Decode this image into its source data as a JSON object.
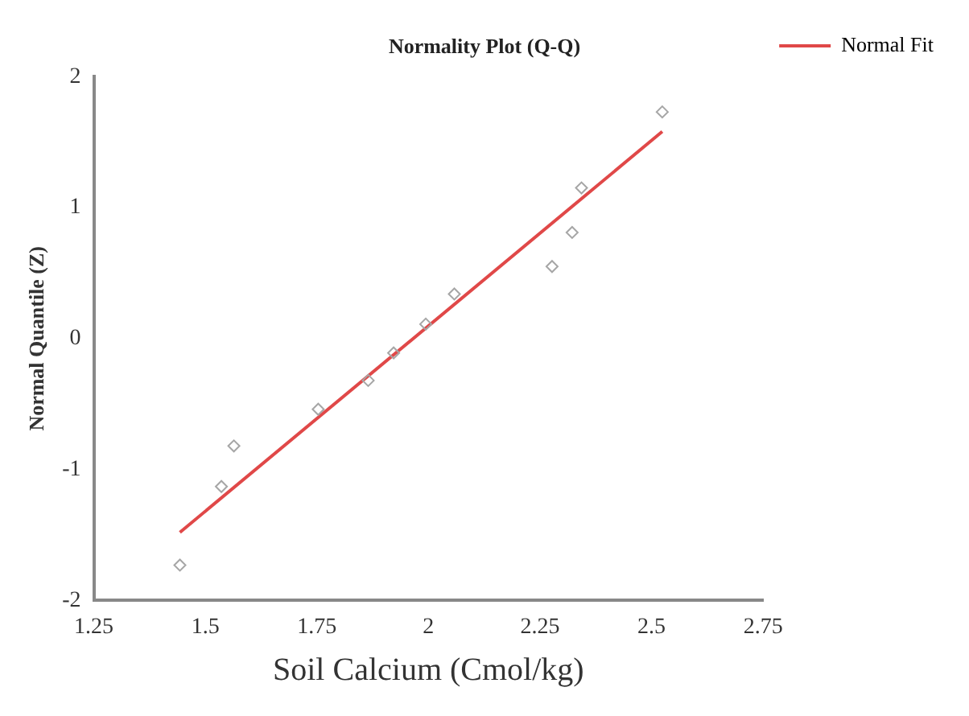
{
  "chart_data": {
    "type": "scatter",
    "title": "Normality Plot (Q-Q)",
    "xlabel": "Soil Calcium (Cmol/kg)",
    "ylabel": "Normal Quantile (Z)",
    "xlim": [
      1.25,
      2.75
    ],
    "xticks": [
      1.25,
      1.5,
      1.75,
      2,
      2.25,
      2.5,
      2.75
    ],
    "ylim": [
      -2,
      2
    ],
    "yticks": [
      -2,
      -1,
      0,
      1,
      2
    ],
    "grid": false,
    "legend": "top right",
    "series": [
      {
        "type": "scatter",
        "color": "#a6a6a6",
        "marker": "diamond",
        "x": [
          1.443,
          1.536,
          1.564,
          1.753,
          1.865,
          1.922,
          1.994,
          2.058,
          2.277,
          2.322,
          2.343,
          2.524
        ],
        "values": [
          -1.73,
          -1.13,
          -0.82,
          -0.54,
          -0.32,
          -0.11,
          0.11,
          0.34,
          0.55,
          0.81,
          1.15,
          1.73
        ]
      },
      {
        "type": "line",
        "name": "Normal Fit",
        "color": "#e04848",
        "marker": "none",
        "x": [
          1.443,
          2.524
        ],
        "values": [
          -1.48,
          1.58
        ]
      }
    ]
  }
}
